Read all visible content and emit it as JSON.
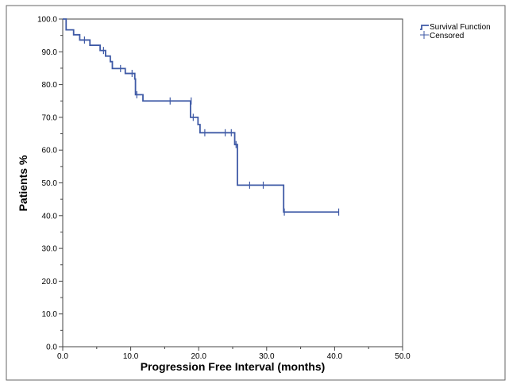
{
  "chart_data": {
    "type": "line",
    "title": "",
    "xlabel": "Progression Free Interval (months)",
    "ylabel": "Patients %",
    "xlim": [
      0,
      50
    ],
    "ylim": [
      0,
      100
    ],
    "x_ticks": [
      "0.0",
      "10.0",
      "20.0",
      "30.0",
      "40.0",
      "50.0"
    ],
    "y_ticks": [
      "0.0",
      "10.0",
      "20.0",
      "30.0",
      "40.0",
      "50.0",
      "60.0",
      "70.0",
      "80.0",
      "90.0",
      "100.0"
    ],
    "grid": false,
    "legend_position": "top-right",
    "legend": [
      "Survival Function",
      "Censored"
    ],
    "series": [
      {
        "name": "Survival Function",
        "step": true,
        "color": "#3f5aa6",
        "points": [
          [
            0.0,
            100.0
          ],
          [
            0.5,
            96.7
          ],
          [
            1.6,
            95.2
          ],
          [
            2.5,
            93.6
          ],
          [
            4.0,
            92.0
          ],
          [
            5.5,
            90.4
          ],
          [
            6.3,
            88.7
          ],
          [
            7.0,
            87.0
          ],
          [
            7.3,
            84.9
          ],
          [
            9.2,
            83.4
          ],
          [
            10.6,
            81.7
          ],
          [
            10.7,
            76.9
          ],
          [
            11.8,
            75.0
          ],
          [
            18.8,
            70.0
          ],
          [
            19.9,
            67.8
          ],
          [
            20.2,
            65.3
          ],
          [
            25.3,
            61.7
          ],
          [
            25.7,
            49.3
          ],
          [
            32.5,
            41.1
          ],
          [
            40.6,
            41.1
          ]
        ]
      },
      {
        "name": "Censored",
        "color": "#3f5aa6",
        "points": [
          [
            3.2,
            93.6
          ],
          [
            6.0,
            90.4
          ],
          [
            8.5,
            84.9
          ],
          [
            10.2,
            83.4
          ],
          [
            10.9,
            76.9
          ],
          [
            15.8,
            75.0
          ],
          [
            18.9,
            75.0
          ],
          [
            19.2,
            70.0
          ],
          [
            20.9,
            65.3
          ],
          [
            23.9,
            65.3
          ],
          [
            24.8,
            65.3
          ],
          [
            25.5,
            61.7
          ],
          [
            27.5,
            49.3
          ],
          [
            29.5,
            49.3
          ],
          [
            32.6,
            41.1
          ],
          [
            40.6,
            41.1
          ]
        ]
      }
    ]
  }
}
